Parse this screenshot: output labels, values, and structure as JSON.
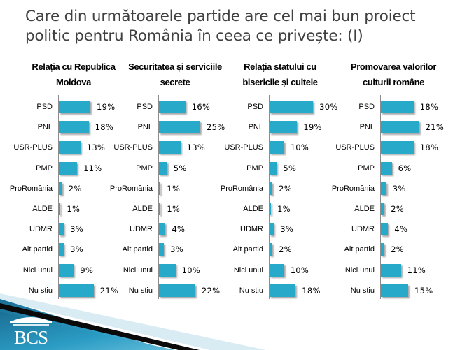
{
  "title": "Care din următoarele partide are cel mai bun proiect politic pentru România în ceea ce privește: (I)",
  "title_lines": [
    "Care din următoarele partide are cel mai bun proiect",
    "politic pentru România în ceea ce privește: (I)"
  ],
  "colors": {
    "bar": "#27a9c9",
    "title": "#404040",
    "footer_blue": "#1f7fa6"
  },
  "logo": {
    "text": "BCS"
  },
  "chart_data": [
    {
      "type": "bar",
      "orientation": "horizontal",
      "title": "Relația cu Republica Moldova",
      "title_lines": [
        "Relația cu Republica",
        "Moldova"
      ],
      "categories": [
        "PSD",
        "PNL",
        "USR-PLUS",
        "PMP",
        "ProRomânia",
        "ALDE",
        "UDMR",
        "Alt partid",
        "Nici unul",
        "Nu stiu"
      ],
      "values": [
        19,
        18,
        13,
        11,
        2,
        1,
        3,
        3,
        9,
        21
      ],
      "labels": [
        "19%",
        "18%",
        "13%",
        "11%",
        "2%",
        "1%",
        "3%",
        "3%",
        "9%",
        "21%"
      ],
      "unit": "%"
    },
    {
      "type": "bar",
      "orientation": "horizontal",
      "title": "Securitatea și serviciile secrete",
      "title_lines": [
        "Securitatea și serviciile",
        "secrete"
      ],
      "categories": [
        "PSD",
        "PNL",
        "USR-PLUS",
        "PMP",
        "ProRomânia",
        "ALDE",
        "UDMR",
        "Alt partid",
        "Nici unul",
        "Nu stiu"
      ],
      "values": [
        16,
        25,
        13,
        5,
        1,
        1,
        4,
        3,
        10,
        22
      ],
      "labels": [
        "16%",
        "25%",
        "13%",
        "5%",
        "1%",
        "1%",
        "4%",
        "3%",
        "10%",
        "22%"
      ],
      "unit": "%"
    },
    {
      "type": "bar",
      "orientation": "horizontal",
      "title": "Relația statului cu bisericile și cultele",
      "title_lines": [
        "Relația statului cu",
        "bisericile și cultele"
      ],
      "categories": [
        "PSD",
        "PNL",
        "USR-PLUS",
        "PMP",
        "ProRomânia",
        "ALDE",
        "UDMR",
        "Alt partid",
        "Nici unul",
        "Nu stiu"
      ],
      "values": [
        30,
        19,
        10,
        5,
        2,
        1,
        3,
        2,
        10,
        18
      ],
      "labels": [
        "30%",
        "19%",
        "10%",
        "5%",
        "2%",
        "1%",
        "3%",
        "2%",
        "10%",
        "18%"
      ],
      "unit": "%"
    },
    {
      "type": "bar",
      "orientation": "horizontal",
      "title": "Promovarea valorilor culturii române",
      "title_lines": [
        "Promovarea valorilor",
        "culturii române"
      ],
      "categories": [
        "PSD",
        "PNL",
        "USR-PLUS",
        "PMP",
        "ProRomânia",
        "ALDE",
        "UDMR",
        "Alt partid",
        "Nici unul",
        "Nu stiu"
      ],
      "values": [
        18,
        21,
        18,
        6,
        3,
        2,
        4,
        2,
        11,
        15
      ],
      "labels": [
        "18%",
        "21%",
        "18%",
        "6%",
        "3%",
        "2%",
        "4%",
        "2%",
        "11%",
        "15%"
      ],
      "unit": "%"
    }
  ]
}
